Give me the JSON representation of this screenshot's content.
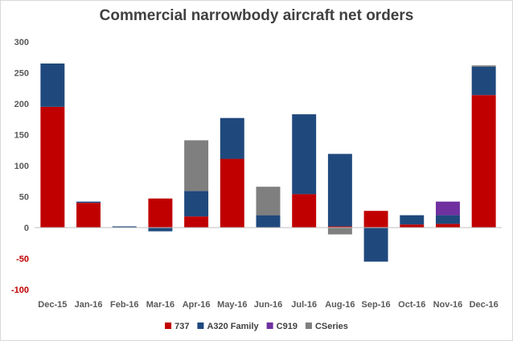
{
  "chart_data": {
    "type": "bar",
    "stacked": true,
    "title": "Commercial narrowbody aircraft net orders",
    "xlabel": "",
    "ylabel": "",
    "ylim": [
      -100,
      300
    ],
    "yticks": [
      -100,
      -50,
      0,
      50,
      100,
      150,
      200,
      250,
      300
    ],
    "grid": false,
    "legend_position": "bottom",
    "categories": [
      "Dec-15",
      "Jan-16",
      "Feb-16",
      "Mar-16",
      "Apr-16",
      "May-16",
      "Jun-16",
      "Jul-16",
      "Aug-16",
      "Sep-16",
      "Oct-16",
      "Nov-16",
      "Dec-16"
    ],
    "series": [
      {
        "name": "737",
        "color": "#c00000",
        "values": [
          195,
          40,
          0,
          47,
          18,
          111,
          0,
          54,
          2,
          27,
          5,
          6,
          214
        ]
      },
      {
        "name": "A320 Family",
        "color": "#1f497d",
        "values": [
          70,
          2,
          2,
          -6,
          41,
          66,
          20,
          129,
          117,
          -55,
          15,
          14,
          46
        ]
      },
      {
        "name": "C919",
        "color": "#7030a0",
        "values": [
          0,
          0,
          0,
          0,
          0,
          0,
          0,
          0,
          0,
          0,
          0,
          22,
          0
        ]
      },
      {
        "name": "CSeries",
        "color": "#7f7f7f",
        "values": [
          0,
          0,
          0,
          0,
          82,
          0,
          46,
          0,
          -11,
          0,
          0,
          0,
          2
        ]
      }
    ]
  }
}
